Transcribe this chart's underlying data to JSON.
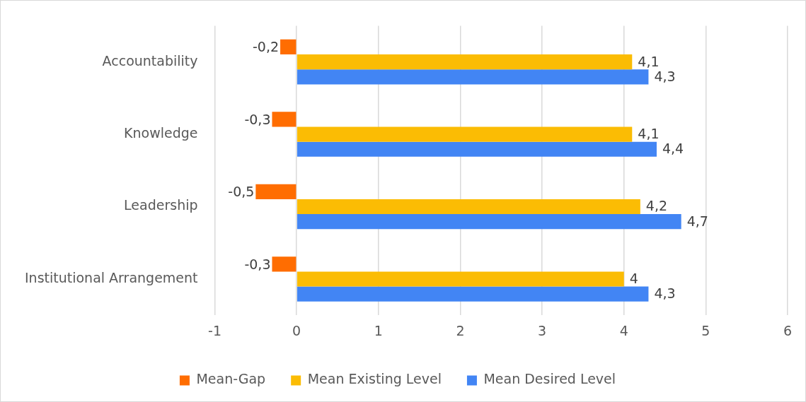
{
  "chart_data": {
    "type": "bar",
    "orientation": "horizontal",
    "categories": [
      "Accountability",
      "Knowledge",
      "Leadership",
      "Institutional Arrangement"
    ],
    "series": [
      {
        "name": "Mean-Gap",
        "color": "#ff6d01",
        "values": [
          -0.2,
          -0.3,
          -0.5,
          -0.3
        ],
        "value_labels": [
          "-0,2",
          "-0,3",
          "-0,5",
          "-0,3"
        ]
      },
      {
        "name": "Mean Existing Level",
        "color": "#fbbc04",
        "values": [
          4.1,
          4.1,
          4.2,
          4
        ],
        "value_labels": [
          "4,1",
          "4,1",
          "4,2",
          "4"
        ]
      },
      {
        "name": "Mean Desired Level",
        "color": "#4285f4",
        "values": [
          4.3,
          4.4,
          4.7,
          4.3
        ],
        "value_labels": [
          "4,3",
          "4,4",
          "4,7",
          "4,3"
        ]
      }
    ],
    "xlim": [
      -1,
      6
    ],
    "xticks": [
      -1,
      0,
      1,
      2,
      3,
      4,
      5,
      6
    ],
    "grid": "x",
    "legend": "bottom"
  }
}
